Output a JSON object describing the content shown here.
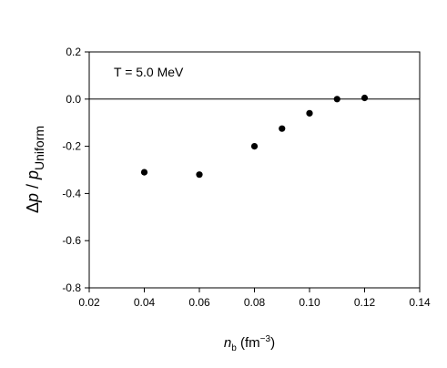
{
  "chart_data": {
    "type": "scatter",
    "annotation": "T = 5.0 MeV",
    "xlabel": {
      "base": "n",
      "sub": "b",
      "unit_open": " (fm",
      "unit_sup": "−3",
      "unit_close": ")"
    },
    "ylabel": {
      "prefix": "Δ",
      "p1": "p",
      "slash": " / ",
      "p2": "p",
      "sub": "Uniform"
    },
    "xlim": [
      0.02,
      0.14
    ],
    "ylim": [
      -0.8,
      0.2
    ],
    "xticks": [
      "0.02",
      "0.04",
      "0.06",
      "0.08",
      "0.10",
      "0.12",
      "0.14"
    ],
    "yticks": [
      "0.2",
      "0.0",
      "-0.2",
      "-0.4",
      "-0.6",
      "-0.8"
    ],
    "reference_line_y": 0.0,
    "grid": false,
    "series": [
      {
        "x": [
          0.04,
          0.06,
          0.08,
          0.09,
          0.1,
          0.11,
          0.12
        ],
        "y": [
          -0.31,
          -0.32,
          -0.2,
          -0.125,
          -0.06,
          0.0,
          0.005
        ]
      }
    ]
  }
}
